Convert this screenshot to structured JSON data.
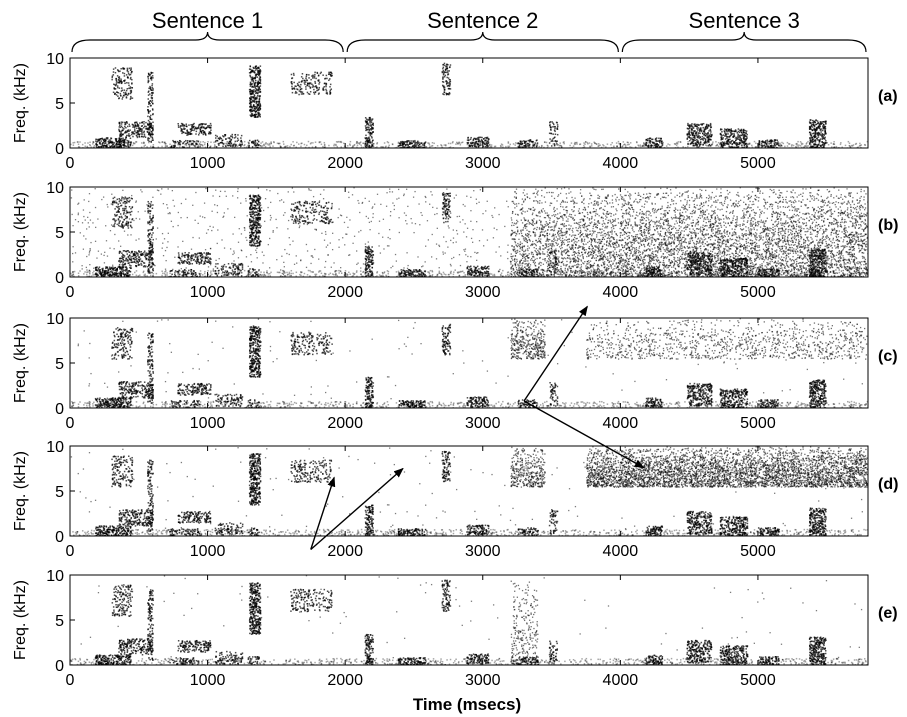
{
  "chart_data": {
    "type": "heatmap",
    "description_kind": "spectrogram panels",
    "xlabel": "Time (msecs)",
    "xlim": [
      0,
      5800
    ],
    "x_ticks": [
      0,
      1000,
      2000,
      3000,
      4000,
      5000
    ],
    "ylabel": "Freq. (kHz)",
    "ylim": [
      0,
      10
    ],
    "y_ticks": [
      0,
      5,
      10
    ],
    "sentences": [
      {
        "label": "Sentence 1",
        "start": 0,
        "end": 2000
      },
      {
        "label": "Sentence 2",
        "start": 2000,
        "end": 4000
      },
      {
        "label": "Sentence 3",
        "start": 4000,
        "end": 5800
      }
    ],
    "panels": [
      {
        "label": "(a)",
        "noise_level": 0.0,
        "high_noise": [],
        "smear": []
      },
      {
        "label": "(b)",
        "noise_level": 0.22,
        "high_noise": [
          [
            3200,
            3750,
            0.45
          ],
          [
            3750,
            5800,
            0.55
          ]
        ],
        "smear": []
      },
      {
        "label": "(c)",
        "noise_level": 0.03,
        "high_noise": [
          [
            3200,
            3450,
            0.35
          ],
          [
            3750,
            5800,
            0.12
          ]
        ],
        "smear": []
      },
      {
        "label": "(d)",
        "noise_level": 0.03,
        "high_noise": [
          [
            3200,
            3450,
            0.35
          ],
          [
            3750,
            5800,
            0.5
          ]
        ],
        "smear": []
      },
      {
        "label": "(e)",
        "noise_level": 0.02,
        "high_noise": [
          [
            3200,
            3400,
            0.3
          ]
        ],
        "smear": []
      }
    ],
    "arrows": [
      {
        "panel": 3,
        "from": [
          1750,
          -1.5
        ],
        "to": [
          1920,
          6.5
        ]
      },
      {
        "panel": 3,
        "from": [
          1750,
          -1.5
        ],
        "to": [
          2420,
          7.5
        ]
      },
      {
        "panel": 3,
        "from": [
          3300,
          15
        ],
        "to": [
          3760,
          25.5
        ]
      },
      {
        "panel": 3,
        "from": [
          3300,
          15
        ],
        "to": [
          4170,
          7.6
        ]
      }
    ],
    "speech_blobs": [
      {
        "t": 180,
        "dur": 260,
        "f0": 0.1,
        "f1": 1.2,
        "d": 0.9
      },
      {
        "t": 300,
        "dur": 150,
        "f0": 5.5,
        "f1": 9.0,
        "d": 0.35
      },
      {
        "t": 350,
        "dur": 250,
        "f0": 1.2,
        "f1": 3.0,
        "d": 0.55
      },
      {
        "t": 560,
        "dur": 40,
        "f0": 0.5,
        "f1": 8.5,
        "d": 0.5
      },
      {
        "t": 780,
        "dur": 240,
        "f0": 1.5,
        "f1": 2.8,
        "d": 0.6
      },
      {
        "t": 720,
        "dur": 220,
        "f0": 0.0,
        "f1": 0.9,
        "d": 0.45
      },
      {
        "t": 1050,
        "dur": 200,
        "f0": 0.2,
        "f1": 1.6,
        "d": 0.4
      },
      {
        "t": 1300,
        "dur": 80,
        "f0": 3.5,
        "f1": 9.2,
        "d": 0.95
      },
      {
        "t": 1290,
        "dur": 80,
        "f0": 0.0,
        "f1": 1.0,
        "d": 0.5
      },
      {
        "t": 1600,
        "dur": 300,
        "f0": 6.0,
        "f1": 8.5,
        "d": 0.3
      },
      {
        "t": 2140,
        "dur": 60,
        "f0": 0.0,
        "f1": 3.5,
        "d": 0.8
      },
      {
        "t": 2380,
        "dur": 200,
        "f0": 0.0,
        "f1": 0.9,
        "d": 0.8
      },
      {
        "t": 2700,
        "dur": 60,
        "f0": 6.0,
        "f1": 9.5,
        "d": 0.55
      },
      {
        "t": 2880,
        "dur": 160,
        "f0": 0.2,
        "f1": 1.3,
        "d": 0.75
      },
      {
        "t": 3250,
        "dur": 150,
        "f0": 0.0,
        "f1": 1.0,
        "d": 0.6
      },
      {
        "t": 3480,
        "dur": 60,
        "f0": 0.3,
        "f1": 3.0,
        "d": 0.4
      },
      {
        "t": 4180,
        "dur": 120,
        "f0": 0.0,
        "f1": 1.2,
        "d": 0.8
      },
      {
        "t": 4480,
        "dur": 180,
        "f0": 0.3,
        "f1": 2.8,
        "d": 0.7
      },
      {
        "t": 4720,
        "dur": 200,
        "f0": 0.0,
        "f1": 2.2,
        "d": 0.75
      },
      {
        "t": 5000,
        "dur": 150,
        "f0": 0.0,
        "f1": 1.0,
        "d": 0.8
      },
      {
        "t": 5370,
        "dur": 120,
        "f0": 0.0,
        "f1": 3.2,
        "d": 0.85
      }
    ]
  }
}
